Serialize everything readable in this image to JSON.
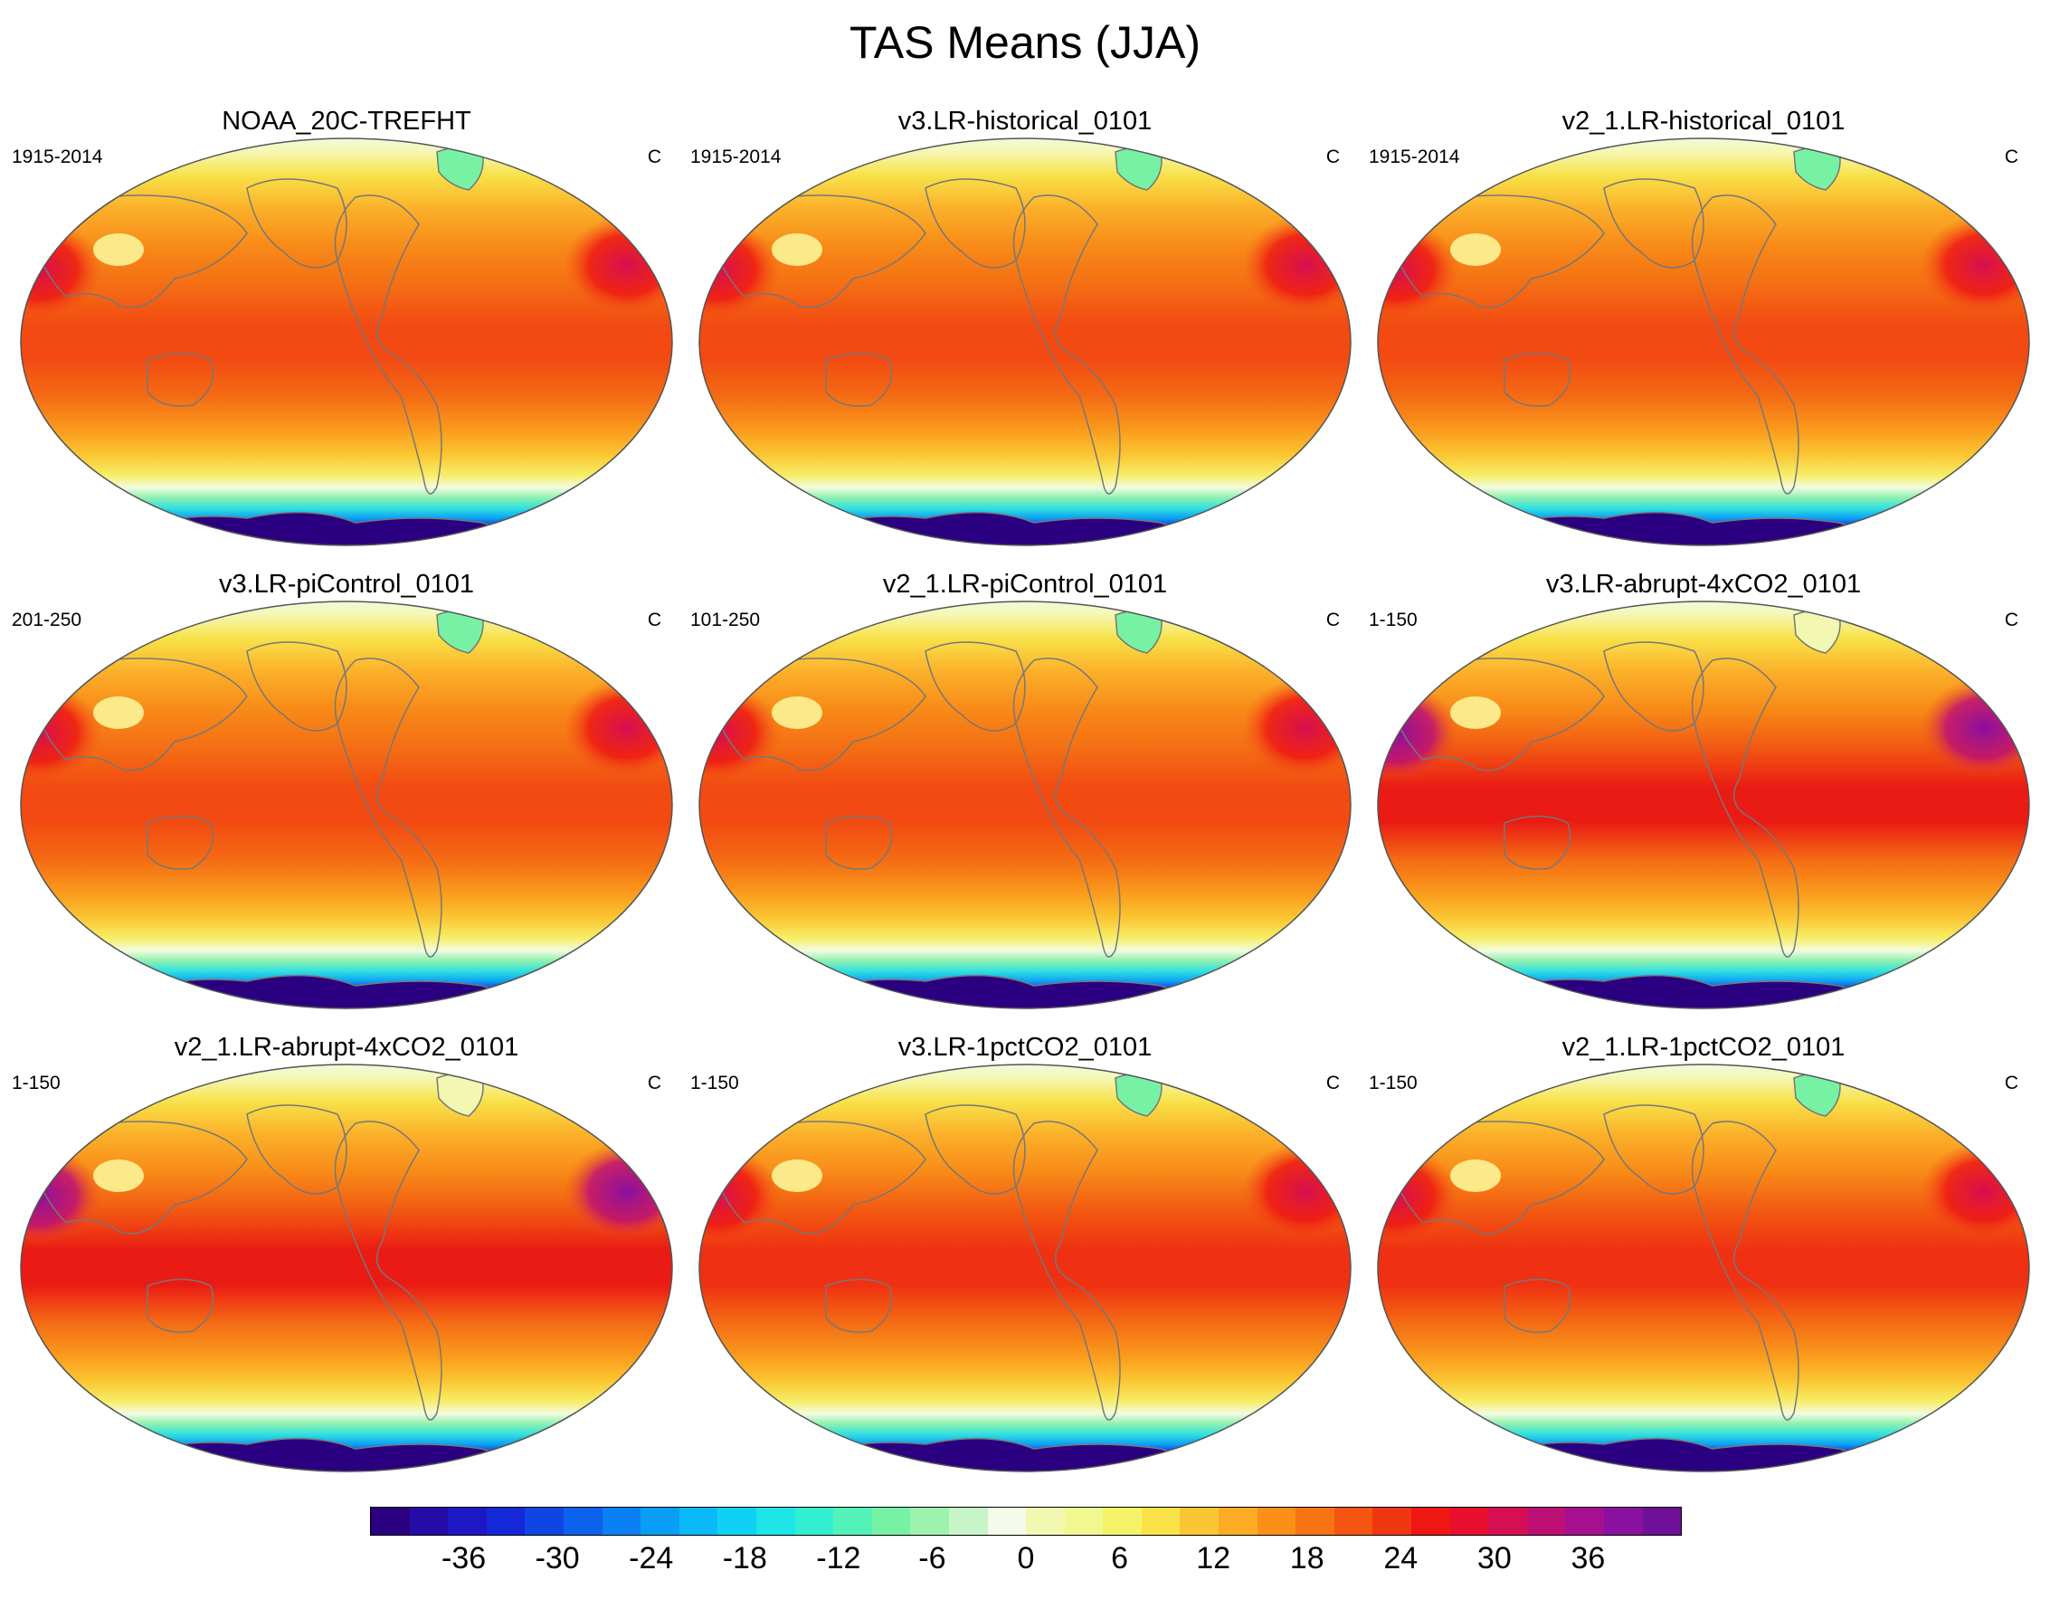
{
  "title": "TAS Means (JJA)",
  "panels": [
    {
      "title": "NOAA_20C-TREFHT",
      "period": "1915-2014",
      "units": "C",
      "warming": 0
    },
    {
      "title": "v3.LR-historical_0101",
      "period": "1915-2014",
      "units": "C",
      "warming": 0
    },
    {
      "title": "v2_1.LR-historical_0101",
      "period": "1915-2014",
      "units": "C",
      "warming": 0
    },
    {
      "title": "v3.LR-piControl_0101",
      "period": "201-250",
      "units": "C",
      "warming": 0
    },
    {
      "title": "v2_1.LR-piControl_0101",
      "period": "101-250",
      "units": "C",
      "warming": 0
    },
    {
      "title": "v3.LR-abrupt-4xCO2_0101",
      "period": "1-150",
      "units": "C",
      "warming": 2
    },
    {
      "title": "v2_1.LR-abrupt-4xCO2_0101",
      "period": "1-150",
      "units": "C",
      "warming": 2
    },
    {
      "title": "v3.LR-1pctCO2_0101",
      "period": "1-150",
      "units": "C",
      "warming": 1
    },
    {
      "title": "v2_1.LR-1pctCO2_0101",
      "period": "1-150",
      "units": "C",
      "warming": 1
    }
  ],
  "colorbar": {
    "units": "C",
    "min": -42,
    "max": 42,
    "step": 3,
    "labels": [
      "-36",
      "-30",
      "-24",
      "-18",
      "-12",
      "-6",
      "0",
      "6",
      "12",
      "18",
      "24",
      "30",
      "36"
    ],
    "colors": [
      "#2b0080",
      "#250ca6",
      "#1d17c4",
      "#1528d8",
      "#0f45e2",
      "#0b62ec",
      "#0a80f2",
      "#0a9df6",
      "#0ab9f8",
      "#10d1f4",
      "#1de5e8",
      "#33efd2",
      "#52f2b8",
      "#77f2a5",
      "#9df2ae",
      "#c7f4c8",
      "#f4fbea",
      "#f2f8b2",
      "#f2f890",
      "#f5f268",
      "#f8e247",
      "#fac633",
      "#fbac24",
      "#fa9018",
      "#f77314",
      "#f45512",
      "#f13612",
      "#ee1714",
      "#e6102e",
      "#d60f52",
      "#be0f74",
      "#a61090",
      "#8a10a0",
      "#6f1098"
    ]
  }
}
